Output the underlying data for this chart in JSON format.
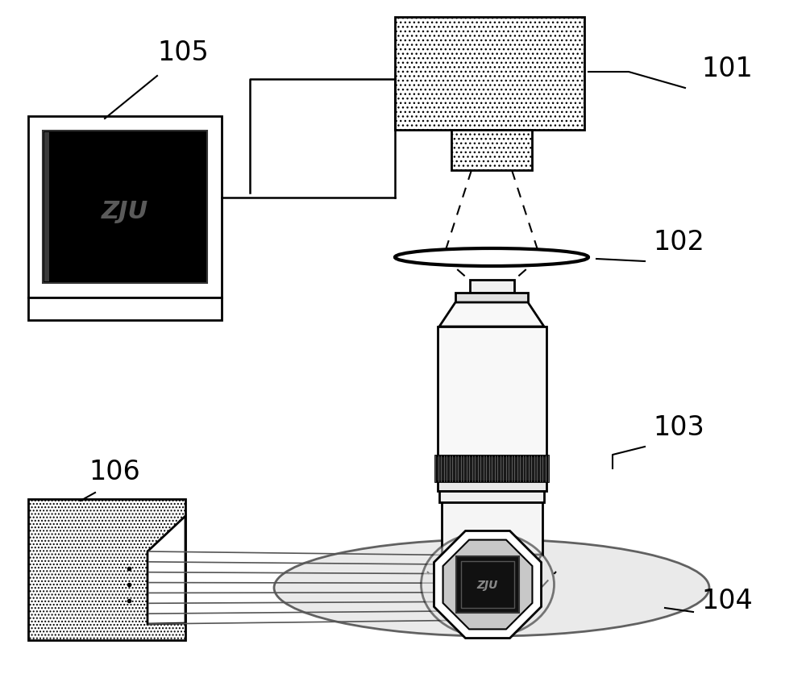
{
  "bg_color": "#ffffff",
  "line_color": "#000000",
  "label_101": "101",
  "label_102": "102",
  "label_103": "103",
  "label_104": "104",
  "label_105": "105",
  "label_106": "106",
  "label_fontsize": 24,
  "fig_width": 10.0,
  "fig_height": 8.37
}
